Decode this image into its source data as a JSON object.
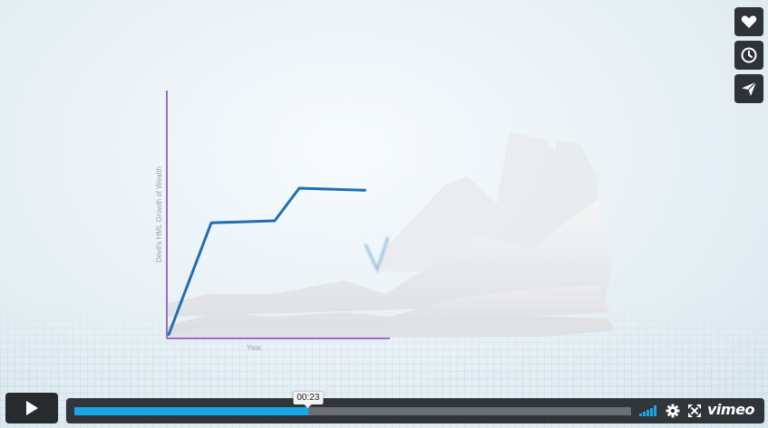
{
  "video": {
    "elapsed_time": "00:23",
    "progress_fraction": 0.42,
    "volume_level": 1.0,
    "brand": "vimeo",
    "accent_color": "#1aa6e4"
  },
  "sidebar": {
    "buttons": [
      {
        "name": "like-button",
        "icon": "heart-icon"
      },
      {
        "name": "watch-later-button",
        "icon": "clock-icon"
      },
      {
        "name": "share-button",
        "icon": "paper-plane-icon"
      }
    ]
  },
  "controls": {
    "play_icon": "play-icon",
    "settings_icon": "gear-icon",
    "fullscreen_icon": "fullscreen-icon",
    "volume_icon": "volume-bars-icon"
  },
  "chart_data": {
    "type": "line",
    "ylabel": "Devil's HML Growth of Wealth",
    "xlabel": "Year",
    "axis_color": "#9b6fc4",
    "line_color": "#1f6fb0",
    "series": [
      {
        "values": [
          0,
          0.55,
          0.56,
          0.72,
          0.71
        ]
      }
    ]
  }
}
